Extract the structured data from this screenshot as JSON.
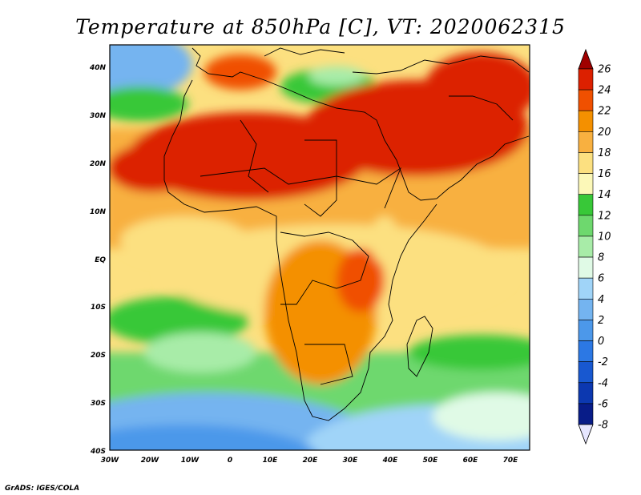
{
  "title": "Temperature at 850hPa [C], VT: 2020062315",
  "credit": "GrADS: IGES/COLA",
  "lon_labels": [
    "30W",
    "20W",
    "10W",
    "0",
    "10E",
    "20E",
    "30E",
    "40E",
    "50E",
    "60E",
    "70E"
  ],
  "lat_labels": [
    "40N",
    "30N",
    "20N",
    "10N",
    "EQ",
    "10S",
    "20S",
    "30S",
    "40S"
  ],
  "colorbar": {
    "labels": [
      "26",
      "24",
      "22",
      "20",
      "18",
      "16",
      "14",
      "12",
      "10",
      "8",
      "6",
      "4",
      "2",
      "0",
      "-2",
      "-4",
      "-6",
      "-8"
    ],
    "colors": [
      "#a00000",
      "#dc2000",
      "#f05000",
      "#f49000",
      "#f8b040",
      "#fce080",
      "#fcf8b8",
      "#38c838",
      "#6ed86e",
      "#a8eca8",
      "#e0fae6",
      "#a0d4f8",
      "#74b4f0",
      "#4c98ea",
      "#2c78e4",
      "#1858d0",
      "#0c38b0",
      "#081c88",
      "#0c0c60"
    ]
  },
  "colors": {
    "ocean_cold": "#4c98ea",
    "ocean_cool": "#a0d4f8",
    "green": "#38c838",
    "light_green": "#6ed86e",
    "pale": "#fcf8b8",
    "yellow": "#fce080",
    "orange": "#f49000",
    "red": "#dc2000"
  }
}
